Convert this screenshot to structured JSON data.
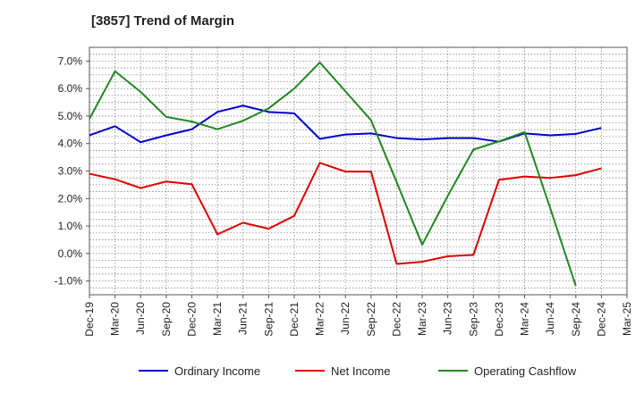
{
  "chart_data": {
    "type": "line",
    "title": "[3857]  Trend of Margin",
    "xlabel": "",
    "ylabel": "",
    "ylim": [
      -1.5,
      7.5
    ],
    "yticks": [
      "-1.0%",
      "0.0%",
      "1.0%",
      "2.0%",
      "3.0%",
      "4.0%",
      "5.0%",
      "6.0%",
      "7.0%"
    ],
    "ytick_values": [
      -1,
      0,
      1,
      2,
      3,
      4,
      5,
      6,
      7
    ],
    "grid": true,
    "legend_position": "bottom",
    "categories": [
      "Dec-19",
      "Mar-20",
      "Jun-20",
      "Sep-20",
      "Dec-20",
      "Mar-21",
      "Jun-21",
      "Sep-21",
      "Dec-21",
      "Mar-22",
      "Jun-22",
      "Sep-22",
      "Dec-22",
      "Mar-23",
      "Jun-23",
      "Sep-23",
      "Dec-23",
      "Mar-24",
      "Jun-24",
      "Sep-24",
      "Dec-24",
      "Mar-25"
    ],
    "series": [
      {
        "name": "Ordinary Income",
        "color": "#0000cc",
        "values": [
          4.3,
          4.63,
          4.05,
          4.3,
          4.52,
          5.15,
          5.38,
          5.15,
          5.1,
          4.17,
          4.33,
          4.37,
          4.2,
          4.15,
          4.2,
          4.2,
          4.07,
          4.37,
          4.3,
          4.35,
          4.57,
          null
        ]
      },
      {
        "name": "Net Income",
        "color": "#dd0000",
        "values": [
          2.9,
          2.7,
          2.38,
          2.62,
          2.52,
          0.7,
          1.12,
          0.9,
          1.37,
          3.3,
          2.98,
          2.98,
          -0.38,
          -0.3,
          -0.1,
          -0.05,
          2.68,
          2.8,
          2.75,
          2.85,
          3.1,
          null
        ]
      },
      {
        "name": "Operating Cashflow",
        "color": "#228822",
        "values": [
          4.9,
          6.63,
          5.88,
          4.97,
          4.8,
          4.52,
          4.83,
          5.28,
          6.0,
          6.95,
          5.9,
          4.85,
          2.6,
          0.32,
          2.1,
          3.78,
          4.08,
          4.42,
          1.65,
          -1.18,
          null,
          null
        ]
      }
    ]
  }
}
